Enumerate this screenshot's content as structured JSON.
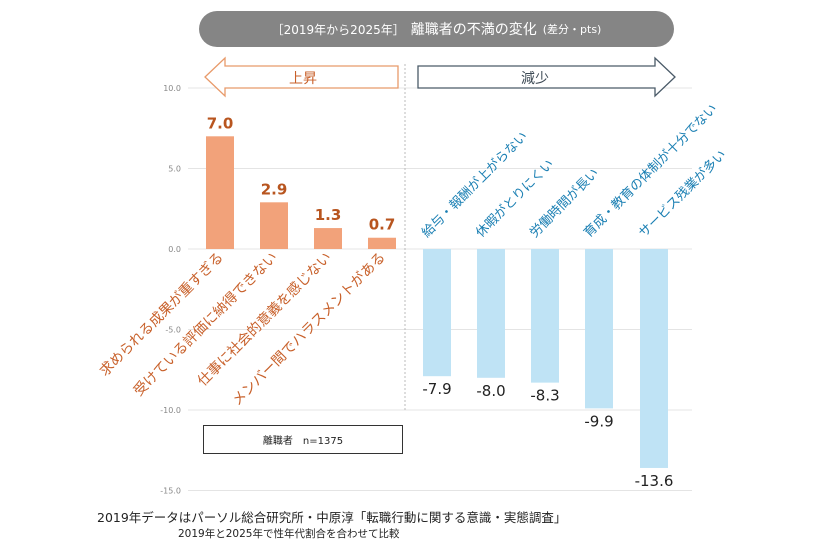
{
  "title": {
    "prefix": "［2019年から2025年］",
    "main": "離職者の不満の変化",
    "unit": "(差分・pts)"
  },
  "arrows": {
    "up_label": "上昇",
    "down_label": "減少"
  },
  "sample_label": "離職者　n=1375",
  "notes": {
    "source": "2019年データはパーソル総合研究所・中原淳「転職行動に関する意識・実態調査」",
    "method": "2019年と2025年で性年代割合を合わせて比較"
  },
  "colors": {
    "increase": "#f2a27a",
    "decrease": "#bfe3f5",
    "increase_text": "#c8602a",
    "decrease_text": "#1a7fb3",
    "title_bg": "#858585"
  },
  "chart_data": {
    "type": "bar",
    "title": "［2019年から2025年］離職者の不満の変化(差分・pts)",
    "ylim": [
      -15,
      10
    ],
    "yticks": [
      "10.0",
      "5.0",
      "0.0",
      "-5.0",
      "-10.0",
      "-15.0"
    ],
    "ytick_values": [
      10,
      5,
      0,
      -5,
      -10,
      -15
    ],
    "grid": true,
    "categories": [
      "求められる成果が重すぎる",
      "受けている評価に納得できない",
      "仕事に社会的意義を感じない",
      "メンバー間でハラスメントがある",
      "給与・報酬が上がらない",
      "休暇がとりにくい",
      "労働時間が長い",
      "育成・教育の体制が十分でない",
      "サービス残業が多い"
    ],
    "values": [
      7.0,
      2.9,
      1.3,
      0.7,
      -7.9,
      -8.0,
      -8.3,
      -9.9,
      -13.6
    ],
    "value_labels": [
      "7.0",
      "2.9",
      "1.3",
      "0.7",
      "-7.9",
      "-8.0",
      "-8.3",
      "-9.9",
      "-13.6"
    ]
  }
}
